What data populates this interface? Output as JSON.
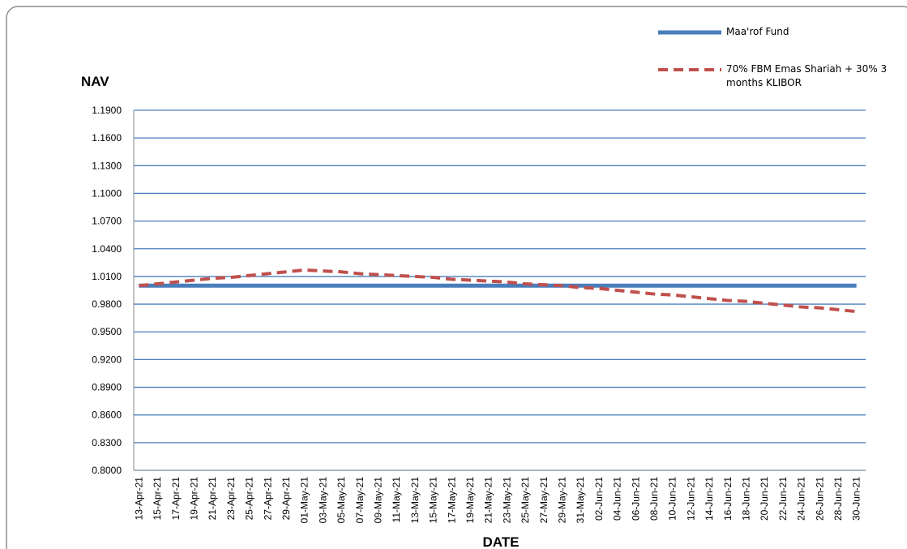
{
  "chart_data": {
    "type": "line",
    "y_label": "NAV",
    "x_label": "DATE",
    "categories": [
      "13-Apr-21",
      "15-Apr-21",
      "17-Apr-21",
      "19-Apr-21",
      "21-Apr-21",
      "23-Apr-21",
      "25-Apr-21",
      "27-Apr-21",
      "29-Apr-21",
      "01-May-21",
      "03-May-21",
      "05-May-21",
      "07-May-21",
      "09-May-21",
      "11-May-21",
      "13-May-21",
      "15-May-21",
      "17-May-21",
      "19-May-21",
      "21-May-21",
      "23-May-21",
      "25-May-21",
      "27-May-21",
      "29-May-21",
      "31-May-21",
      "02-Jun-21",
      "04-Jun-21",
      "06-Jun-21",
      "08-Jun-21",
      "10-Jun-21",
      "12-Jun-21",
      "14-Jun-21",
      "16-Jun-21",
      "18-Jun-21",
      "20-Jun-21",
      "22-Jun-21",
      "24-Jun-21",
      "26-Jun-21",
      "28-Jun-21",
      "30-Jun-21"
    ],
    "series": [
      {
        "name": "Maa'rof Fund",
        "color": "#4a7ebb",
        "dashed": false,
        "values": [
          1.0,
          1.0,
          1.0,
          1.0,
          1.0,
          1.0,
          1.0,
          1.0,
          1.0,
          1.0,
          1.0,
          1.0,
          1.0,
          1.0,
          1.0,
          1.0,
          1.0,
          1.0,
          1.0,
          1.0,
          1.0,
          1.0,
          1.0,
          1.0,
          1.0,
          1.0,
          1.0,
          1.0,
          1.0,
          1.0,
          1.0,
          1.0,
          1.0,
          1.0,
          1.0,
          1.0,
          1.0,
          1.0,
          1.0,
          1.0
        ]
      },
      {
        "name": "70% FBM Emas Shariah + 30% 3 months KLIBOR",
        "color": "#c0504d",
        "dashed": true,
        "values": [
          1.0,
          1.002,
          1.004,
          1.006,
          1.008,
          1.009,
          1.011,
          1.013,
          1.015,
          1.017,
          1.016,
          1.015,
          1.013,
          1.012,
          1.011,
          1.01,
          1.009,
          1.007,
          1.006,
          1.005,
          1.004,
          1.002,
          1.001,
          1.0,
          0.998,
          0.997,
          0.995,
          0.993,
          0.991,
          0.99,
          0.988,
          0.986,
          0.984,
          0.983,
          0.981,
          0.979,
          0.977,
          0.976,
          0.974,
          0.972
        ]
      }
    ],
    "ylim": [
      0.8,
      1.19
    ],
    "yticks": [
      {
        "value": 0.8,
        "label": "0.8000"
      },
      {
        "value": 0.83,
        "label": "0.8300"
      },
      {
        "value": 0.86,
        "label": "0.8600"
      },
      {
        "value": 0.89,
        "label": "0.8900"
      },
      {
        "value": 0.92,
        "label": "0.9200"
      },
      {
        "value": 0.95,
        "label": "0.9500"
      },
      {
        "value": 0.98,
        "label": "0.9800"
      },
      {
        "value": 1.01,
        "label": "1.0100"
      },
      {
        "value": 1.04,
        "label": "1.0400"
      },
      {
        "value": 1.07,
        "label": "1.0700"
      },
      {
        "value": 1.1,
        "label": "1.1000"
      },
      {
        "value": 1.13,
        "label": "1.1300"
      },
      {
        "value": 1.16,
        "label": "1.1600"
      },
      {
        "value": 1.19,
        "label": "1.1900"
      }
    ],
    "grid": true,
    "grid_color": "#4a7ebb",
    "legend": "top-right"
  }
}
